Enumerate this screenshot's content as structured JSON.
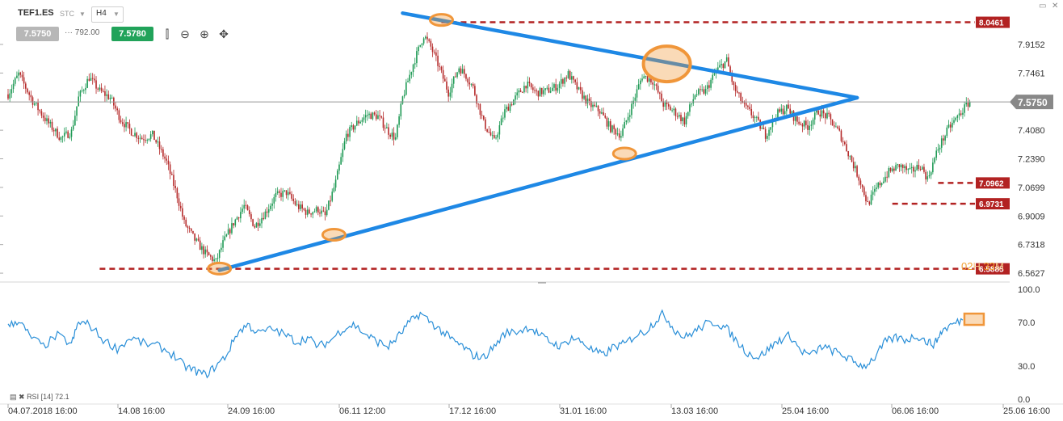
{
  "header": {
    "symbol": "TEF1.ES",
    "symbol_type": "STC",
    "timeframe": "H4",
    "bid": "7.5750",
    "spread": "··· 792.00",
    "ask": "7.5780"
  },
  "countdown": {
    "hours": "02",
    "h_unit": "H",
    "minutes": "33",
    "m_unit": "M"
  },
  "rsi_indicator": {
    "label": "RSI [14] 72.1"
  },
  "chart_data": {
    "type": "candlestick",
    "instrument": "TEF1.ES",
    "interval": "H4",
    "x_tick_labels": [
      "04.07.2018 16:00",
      "14.08 16:00",
      "24.09 16:00",
      "06.11 12:00",
      "17.12 16:00",
      "31.01 16:00",
      "13.03 16:00",
      "25.04 16:00",
      "06.06 16:00",
      "25.06 16:00"
    ],
    "y_ticks": [
      7.9152,
      7.7461,
      7.408,
      7.239,
      7.0699,
      6.9009,
      6.7318,
      6.5627
    ],
    "y_range": [
      6.52,
      8.13
    ],
    "current_price": "7.5750",
    "price_path": [
      [
        0,
        7.62
      ],
      [
        6,
        7.74
      ],
      [
        14,
        7.58
      ],
      [
        22,
        7.46
      ],
      [
        30,
        7.36
      ],
      [
        36,
        7.4
      ],
      [
        40,
        7.6
      ],
      [
        46,
        7.72
      ],
      [
        52,
        7.64
      ],
      [
        58,
        7.6
      ],
      [
        64,
        7.47
      ],
      [
        70,
        7.4
      ],
      [
        76,
        7.36
      ],
      [
        82,
        7.38
      ],
      [
        90,
        7.22
      ],
      [
        96,
        7.02
      ],
      [
        100,
        6.86
      ],
      [
        106,
        6.76
      ],
      [
        112,
        6.68
      ],
      [
        118,
        6.63
      ],
      [
        122,
        6.74
      ],
      [
        128,
        6.86
      ],
      [
        134,
        6.96
      ],
      [
        140,
        6.84
      ],
      [
        146,
        6.92
      ],
      [
        152,
        7.02
      ],
      [
        158,
        7.04
      ],
      [
        164,
        6.96
      ],
      [
        170,
        6.92
      ],
      [
        176,
        6.94
      ],
      [
        180,
        6.9
      ],
      [
        186,
        7.1
      ],
      [
        192,
        7.38
      ],
      [
        198,
        7.45
      ],
      [
        204,
        7.5
      ],
      [
        210,
        7.49
      ],
      [
        216,
        7.4
      ],
      [
        220,
        7.36
      ],
      [
        224,
        7.6
      ],
      [
        230,
        7.8
      ],
      [
        236,
        7.97
      ],
      [
        240,
        7.9
      ],
      [
        244,
        7.8
      ],
      [
        250,
        7.63
      ],
      [
        256,
        7.78
      ],
      [
        260,
        7.73
      ],
      [
        264,
        7.66
      ],
      [
        270,
        7.45
      ],
      [
        276,
        7.34
      ],
      [
        282,
        7.52
      ],
      [
        288,
        7.6
      ],
      [
        294,
        7.68
      ],
      [
        300,
        7.63
      ],
      [
        306,
        7.64
      ],
      [
        312,
        7.67
      ],
      [
        318,
        7.74
      ],
      [
        324,
        7.64
      ],
      [
        330,
        7.56
      ],
      [
        336,
        7.52
      ],
      [
        342,
        7.42
      ],
      [
        348,
        7.38
      ],
      [
        354,
        7.55
      ],
      [
        360,
        7.73
      ],
      [
        366,
        7.7
      ],
      [
        372,
        7.56
      ],
      [
        378,
        7.52
      ],
      [
        384,
        7.46
      ],
      [
        390,
        7.62
      ],
      [
        396,
        7.64
      ],
      [
        402,
        7.76
      ],
      [
        408,
        7.82
      ],
      [
        412,
        7.66
      ],
      [
        418,
        7.55
      ],
      [
        424,
        7.48
      ],
      [
        430,
        7.38
      ],
      [
        436,
        7.5
      ],
      [
        442,
        7.54
      ],
      [
        448,
        7.46
      ],
      [
        454,
        7.43
      ],
      [
        460,
        7.52
      ],
      [
        466,
        7.48
      ],
      [
        472,
        7.39
      ],
      [
        478,
        7.25
      ],
      [
        484,
        7.1
      ],
      [
        488,
        6.97
      ],
      [
        494,
        7.08
      ],
      [
        500,
        7.16
      ],
      [
        506,
        7.2
      ],
      [
        512,
        7.16
      ],
      [
        518,
        7.2
      ],
      [
        522,
        7.12
      ],
      [
        528,
        7.3
      ],
      [
        534,
        7.42
      ],
      [
        540,
        7.5
      ],
      [
        546,
        7.58
      ]
    ],
    "horizontal_levels": [
      {
        "value": 8.0461,
        "label": "8.0461",
        "color": "#b22222"
      },
      {
        "value": 7.0962,
        "label": "7.0962",
        "color": "#b22222"
      },
      {
        "value": 6.9731,
        "label": "6.9731",
        "color": "#b22222"
      },
      {
        "value": 6.5885,
        "label": "6.5885",
        "color": "#b22222"
      }
    ],
    "trendlines": [
      {
        "from": [
          224,
          8.1
        ],
        "to": [
          482,
          7.6
        ],
        "color": "#1e88e5"
      },
      {
        "from": [
          120,
          6.58
        ],
        "to": [
          482,
          7.6
        ],
        "color": "#1e88e5"
      }
    ],
    "highlights": [
      {
        "x": 120,
        "y": 6.59
      },
      {
        "x": 185,
        "y": 6.79
      },
      {
        "x": 246,
        "y": 8.06
      },
      {
        "x": 350,
        "y": 7.27
      },
      {
        "x": 374,
        "y": 7.8
      }
    ],
    "rsi": {
      "name": "RSI [14] 72.1",
      "ticks": [
        100.0,
        70.0,
        30.0,
        0.0
      ],
      "range": [
        0,
        100
      ],
      "path": [
        [
          0,
          66
        ],
        [
          6,
          72
        ],
        [
          12,
          58
        ],
        [
          20,
          48
        ],
        [
          28,
          58
        ],
        [
          36,
          50
        ],
        [
          40,
          70
        ],
        [
          46,
          68
        ],
        [
          54,
          54
        ],
        [
          62,
          46
        ],
        [
          70,
          56
        ],
        [
          78,
          50
        ],
        [
          86,
          48
        ],
        [
          94,
          40
        ],
        [
          100,
          30
        ],
        [
          106,
          26
        ],
        [
          112,
          22
        ],
        [
          118,
          30
        ],
        [
          124,
          40
        ],
        [
          130,
          60
        ],
        [
          136,
          68
        ],
        [
          142,
          60
        ],
        [
          150,
          64
        ],
        [
          158,
          58
        ],
        [
          164,
          52
        ],
        [
          170,
          56
        ],
        [
          176,
          48
        ],
        [
          182,
          52
        ],
        [
          190,
          64
        ],
        [
          196,
          68
        ],
        [
          204,
          58
        ],
        [
          210,
          52
        ],
        [
          216,
          48
        ],
        [
          222,
          58
        ],
        [
          228,
          70
        ],
        [
          234,
          78
        ],
        [
          240,
          70
        ],
        [
          246,
          62
        ],
        [
          252,
          54
        ],
        [
          258,
          48
        ],
        [
          264,
          40
        ],
        [
          270,
          38
        ],
        [
          276,
          48
        ],
        [
          282,
          60
        ],
        [
          290,
          62
        ],
        [
          296,
          66
        ],
        [
          302,
          58
        ],
        [
          308,
          52
        ],
        [
          314,
          48
        ],
        [
          320,
          56
        ],
        [
          326,
          52
        ],
        [
          332,
          44
        ],
        [
          338,
          40
        ],
        [
          344,
          48
        ],
        [
          350,
          50
        ],
        [
          356,
          58
        ],
        [
          362,
          62
        ],
        [
          368,
          72
        ],
        [
          372,
          78
        ],
        [
          378,
          64
        ],
        [
          384,
          56
        ],
        [
          390,
          62
        ],
        [
          396,
          68
        ],
        [
          402,
          70
        ],
        [
          408,
          64
        ],
        [
          414,
          52
        ],
        [
          420,
          42
        ],
        [
          426,
          38
        ],
        [
          432,
          46
        ],
        [
          438,
          54
        ],
        [
          444,
          58
        ],
        [
          450,
          44
        ],
        [
          456,
          40
        ],
        [
          462,
          48
        ],
        [
          468,
          44
        ],
        [
          474,
          40
        ],
        [
          480,
          34
        ],
        [
          486,
          30
        ],
        [
          492,
          38
        ],
        [
          498,
          52
        ],
        [
          504,
          56
        ],
        [
          510,
          54
        ],
        [
          516,
          58
        ],
        [
          522,
          52
        ],
        [
          526,
          50
        ],
        [
          530,
          62
        ],
        [
          536,
          68
        ],
        [
          542,
          72
        ]
      ],
      "highlight": {
        "x": 542,
        "y": 72
      }
    }
  }
}
